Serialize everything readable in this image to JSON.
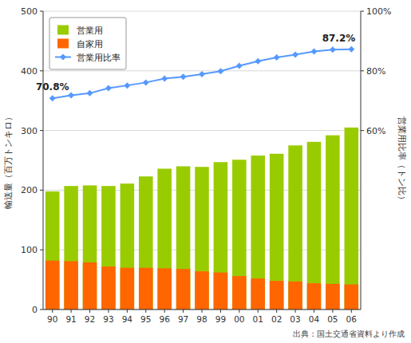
{
  "chart_data": {
    "type": "bar",
    "ylabel": "輸送量（百万トンキロ）",
    "y2label": "営業用比率（トン比）",
    "source": "出典：国土交通省資料より作成",
    "categories": [
      "90",
      "91",
      "92",
      "93",
      "94",
      "95",
      "96",
      "97",
      "98",
      "99",
      "00",
      "01",
      "02",
      "03",
      "04",
      "05",
      "06"
    ],
    "series": [
      {
        "name": "営業用",
        "type": "bar",
        "color": "#99cc00",
        "values": [
          198,
          207,
          208,
          207,
          211,
          223,
          236,
          240,
          239,
          247,
          251,
          258,
          261,
          275,
          281,
          292,
          305
        ]
      },
      {
        "name": "自家用",
        "type": "bar",
        "color": "#ff6600",
        "values": [
          82,
          81,
          79,
          72,
          70,
          70,
          69,
          68,
          64,
          62,
          56,
          52,
          48,
          47,
          44,
          43,
          42
        ]
      },
      {
        "name": "営業用比率",
        "type": "line",
        "axis": "y2",
        "color": "#5599ff",
        "marker": "diamond",
        "values": [
          70.8,
          71.8,
          72.5,
          74.2,
          75.1,
          76.1,
          77.4,
          78.0,
          78.9,
          79.9,
          81.7,
          83.2,
          84.5,
          85.4,
          86.5,
          87.1,
          87.2
        ],
        "value_labels": [
          "70.8%",
          null,
          null,
          null,
          null,
          null,
          null,
          null,
          null,
          null,
          null,
          null,
          null,
          null,
          null,
          null,
          "87.2%"
        ]
      }
    ],
    "stacked": false,
    "ylim": [
      0,
      500
    ],
    "yticks": [
      0,
      100,
      200,
      300,
      400,
      500
    ],
    "y2lim": [
      0,
      100
    ],
    "y2ticks": [
      {
        "value": 60,
        "label": "60%"
      },
      {
        "value": 80,
        "label": "80%"
      },
      {
        "value": 100,
        "label": "100%"
      }
    ],
    "grid": true,
    "legend": "upper-left"
  }
}
